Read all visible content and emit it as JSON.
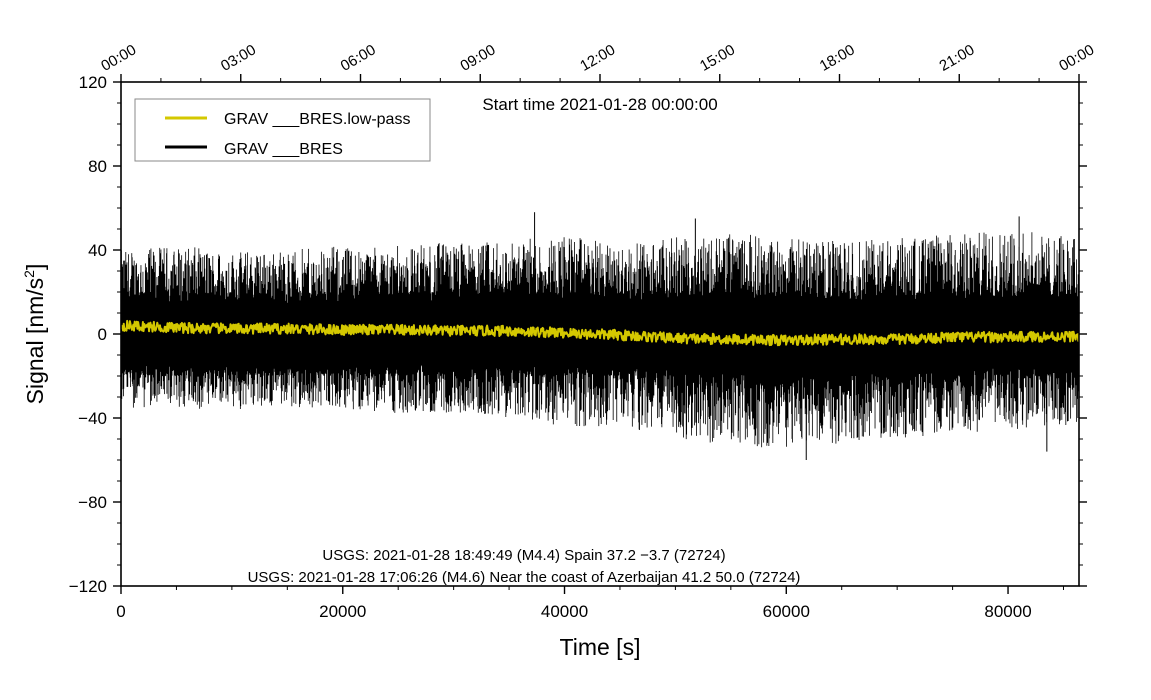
{
  "chart_data": {
    "type": "line",
    "title": "",
    "start_time_text": "Start time 2021-01-28 00:00:00",
    "xlabel": "Time [s]",
    "ylabel_prefix": "Signal [nm/s",
    "ylabel_sup": "2",
    "ylabel_suffix": "]",
    "xlim": [
      0,
      86400
    ],
    "ylim": [
      -120,
      120
    ],
    "x_ticks": [
      0,
      20000,
      40000,
      60000,
      80000
    ],
    "x_tick_labels": [
      "0",
      "20000",
      "40000",
      "60000",
      "80000"
    ],
    "y_ticks": [
      -120,
      -80,
      -40,
      0,
      40,
      80,
      120
    ],
    "y_tick_labels": [
      "−120",
      "−80",
      "−40",
      "0",
      "40",
      "80",
      "120"
    ],
    "top_ticks_seconds": [
      0,
      10800,
      21600,
      32400,
      43200,
      54000,
      64800,
      75600,
      86400
    ],
    "top_tick_labels": [
      "00:00",
      "03:00",
      "06:00",
      "09:00",
      "12:00",
      "15:00",
      "18:00",
      "21:00",
      "00:00"
    ],
    "grid": false,
    "legend_position": "top-left",
    "series": [
      {
        "name": "GRAV ___BRES",
        "color": "#000000",
        "envelope_x": [
          0,
          5000,
          10000,
          15000,
          20000,
          25000,
          30000,
          35000,
          40000,
          45000,
          50000,
          55000,
          60000,
          65000,
          70000,
          75000,
          80000,
          86400
        ],
        "envelope_upper": [
          40,
          42,
          40,
          40,
          42,
          42,
          44,
          44,
          48,
          42,
          46,
          48,
          46,
          44,
          46,
          48,
          50,
          46
        ],
        "envelope_lower": [
          -35,
          -36,
          -36,
          -35,
          -36,
          -38,
          -38,
          -40,
          -44,
          -44,
          -50,
          -54,
          -56,
          -52,
          -50,
          -48,
          -46,
          -44
        ],
        "extreme_points": [
          {
            "x": 37300,
            "y": 58
          },
          {
            "x": 61800,
            "y": -60
          },
          {
            "x": 81000,
            "y": 56
          },
          {
            "x": 51800,
            "y": 55
          },
          {
            "x": 83500,
            "y": -56
          }
        ]
      },
      {
        "name": "GRAV ___BRES.low-pass",
        "color": "#d4c800",
        "x": [
          0,
          5000,
          10000,
          15000,
          20000,
          25000,
          30000,
          35000,
          40000,
          45000,
          50000,
          55000,
          60000,
          65000,
          70000,
          75000,
          80000,
          86400
        ],
        "values": [
          4,
          3,
          2.5,
          2.5,
          2,
          2,
          1.5,
          1.5,
          0.5,
          -0.5,
          -2,
          -2.5,
          -3,
          -2.5,
          -2.5,
          -1.5,
          -1.5,
          -1
        ]
      }
    ],
    "annotations": [
      "USGS: 2021-01-28 18:49:49 (M4.4) Spain 37.2 −3.7 (72724)",
      "USGS: 2021-01-28 17:06:26 (M4.6) Near the coast of Azerbaijan 41.2 50.0 (72724)"
    ]
  },
  "legend": {
    "items": [
      {
        "label": "GRAV ___BRES.low-pass",
        "color": "#d4c800"
      },
      {
        "label": "GRAV ___BRES",
        "color": "#000000"
      }
    ]
  }
}
